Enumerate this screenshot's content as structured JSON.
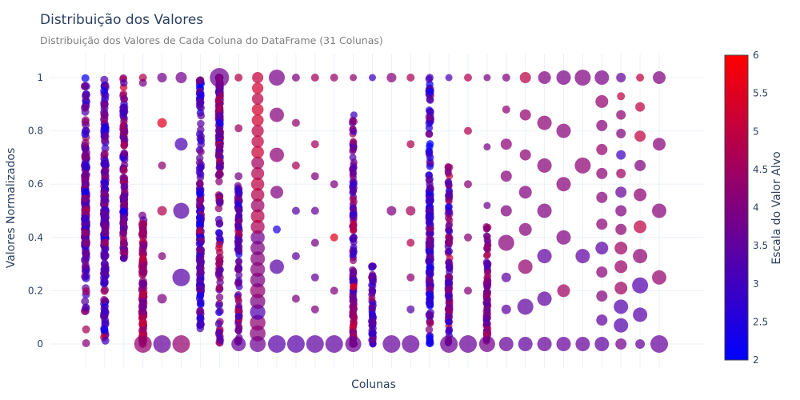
{
  "chart_data": {
    "type": "scatter",
    "title": "Distribuição dos Valores",
    "subtitle": "Distribuição dos Valores de Cada Coluna do DataFrame (31 Colunas)",
    "xlabel": "Colunas",
    "ylabel": "Valores Normalizados",
    "ylim": [
      -0.09,
      1.09
    ],
    "yticks": [
      "0",
      "0.2",
      "0.4",
      "0.6",
      "0.8",
      "1"
    ],
    "ytick_values": [
      0,
      0.2,
      0.4,
      0.6,
      0.8,
      1
    ],
    "column_count": 31,
    "grid": true,
    "colorbar": {
      "title": "Escala do Valor Alvo",
      "min": 2,
      "max": 6,
      "ticks": [
        "2",
        "2.5",
        "3",
        "3.5",
        "4",
        "4.5",
        "5",
        "5.5",
        "6"
      ],
      "tick_values": [
        2,
        2.5,
        3,
        3.5,
        4,
        4.5,
        5,
        5.5,
        6
      ],
      "colors": [
        "#0000ff",
        "#ff0000"
      ]
    },
    "columns": [
      {
        "kind": "dense",
        "lo": 0.0,
        "hi": 1.0,
        "mid": 3.6,
        "spread": 0.7,
        "center": 0.5,
        "peak": 0.65,
        "size": 8,
        "sparse": [
          0.93,
          0.89,
          0.84,
          0.8
        ]
      },
      {
        "kind": "dense",
        "lo": 0.0,
        "hi": 1.0,
        "mid": 3.3,
        "spread": 0.7,
        "center": 0.45,
        "peak": 0.45,
        "size": 8,
        "sparse": [
          0.9,
          0.86
        ]
      },
      {
        "kind": "dense",
        "lo": 0.32,
        "hi": 1.0,
        "mid": 3.7,
        "spread": 0.8,
        "center": 0.6,
        "peak": 0.35,
        "size": 7.5,
        "sparse": [
          0.98,
          0.92,
          0.87
        ]
      },
      {
        "kind": "dense",
        "lo": 0.0,
        "hi": 0.5,
        "mid": 4.4,
        "spread": 0.5,
        "center": 0.1,
        "peak": 0.3,
        "size": 8,
        "zero_size": 11,
        "sparse": [
          1.0,
          0.98
        ]
      },
      {
        "kind": "sparse",
        "points": [
          [
            1.0,
            3.8,
            6
          ],
          [
            0.83,
            5.5,
            6
          ],
          [
            0.67,
            4.2,
            5
          ],
          [
            0.5,
            4.8,
            6
          ],
          [
            0.33,
            4.1,
            5
          ],
          [
            0.17,
            4.0,
            6
          ],
          [
            0.0,
            3.6,
            11
          ]
        ]
      },
      {
        "kind": "sparse",
        "points": [
          [
            1.0,
            3.8,
            7
          ],
          [
            0.75,
            3.2,
            8
          ],
          [
            0.5,
            3.4,
            10
          ],
          [
            0.25,
            3.4,
            11
          ],
          [
            0.0,
            4.3,
            11
          ]
        ]
      },
      {
        "kind": "dense",
        "lo": 0.0,
        "hi": 1.0,
        "mid": 3.3,
        "spread": 0.7,
        "center": 0.4,
        "peak": 0.5,
        "size": 7.5,
        "sparse": [
          0.99
        ]
      },
      {
        "kind": "dense",
        "lo": 0.0,
        "hi": 1.0,
        "mid": 3.8,
        "spread": 0.8,
        "center": 0.85,
        "peak": 0.5,
        "size": 7.5,
        "sparse": [
          1.0
        ],
        "top_size": 12
      },
      {
        "kind": "sparse",
        "points": [
          [
            1.0,
            4.8,
            5
          ],
          [
            0.81,
            4.5,
            5
          ],
          [
            0.63,
            3.9,
            5
          ]
        ],
        "dense_lo": 0.0,
        "dense_hi": 0.6,
        "mid": 3.7,
        "zero_size": 9
      },
      {
        "kind": "ladder",
        "from": 0.0,
        "to": 1.0,
        "step": 0.04,
        "mid": 4.5,
        "size_lo": 7,
        "size_hi": 10
      },
      {
        "kind": "sparse",
        "points": [
          [
            1.0,
            3.9,
            10
          ],
          [
            0.86,
            4.1,
            9
          ],
          [
            0.71,
            4.2,
            9
          ],
          [
            0.57,
            4.0,
            8
          ],
          [
            0.43,
            2.5,
            5
          ],
          [
            0.29,
            3.4,
            9
          ],
          [
            0.0,
            3.4,
            11
          ]
        ]
      },
      {
        "kind": "sparse",
        "points": [
          [
            1.0,
            4.0,
            5
          ],
          [
            0.83,
            4.3,
            5
          ],
          [
            0.67,
            4.7,
            5
          ],
          [
            0.5,
            3.4,
            5
          ],
          [
            0.33,
            3.5,
            5
          ],
          [
            0.17,
            4.0,
            5
          ],
          [
            0.0,
            3.4,
            11
          ]
        ]
      },
      {
        "kind": "sparse",
        "points": [
          [
            1.0,
            4.6,
            5
          ],
          [
            0.75,
            4.6,
            5
          ],
          [
            0.63,
            4.0,
            5
          ],
          [
            0.5,
            3.6,
            5
          ],
          [
            0.38,
            3.9,
            5
          ],
          [
            0.25,
            3.6,
            5
          ],
          [
            0.13,
            4.0,
            5
          ],
          [
            0.0,
            3.5,
            11
          ]
        ]
      },
      {
        "kind": "sparse",
        "points": [
          [
            1.0,
            4.4,
            5
          ],
          [
            0.6,
            4.0,
            5
          ],
          [
            0.4,
            5.6,
            5
          ],
          [
            0.2,
            4.0,
            5
          ],
          [
            0.0,
            3.5,
            11
          ]
        ]
      },
      {
        "kind": "dense",
        "lo": 0.0,
        "hi": 0.86,
        "mid": 3.8,
        "spread": 0.8,
        "center": 0.1,
        "peak": 0.25,
        "size": 7,
        "zero_size": 10,
        "sparse": [
          1.0,
          0.76,
          0.73,
          0.64,
          0.6
        ]
      },
      {
        "kind": "dense",
        "lo": 0.0,
        "hi": 0.3,
        "mid": 3.4,
        "spread": 0.7,
        "center": 0.05,
        "peak": 0.15,
        "size": 7,
        "sparse": [
          1.0
        ]
      },
      {
        "kind": "sparse",
        "points": [
          [
            1.0,
            4.1,
            6
          ],
          [
            0.5,
            4.0,
            6
          ],
          [
            0.0,
            3.6,
            11
          ]
        ]
      },
      {
        "kind": "sparse",
        "points": [
          [
            1.0,
            4.7,
            5
          ],
          [
            0.75,
            4.8,
            5
          ],
          [
            0.5,
            4.6,
            6
          ],
          [
            0.38,
            4.8,
            5
          ],
          [
            0.25,
            4.2,
            5
          ],
          [
            0.13,
            3.4,
            5
          ],
          [
            0.0,
            3.6,
            11
          ]
        ]
      },
      {
        "kind": "dense",
        "lo": 0.0,
        "hi": 1.0,
        "mid": 3.0,
        "spread": 0.8,
        "center": 0.4,
        "peak": 0.55,
        "size": 7.5,
        "sparse": [
          1.0
        ]
      },
      {
        "kind": "dense",
        "lo": 0.0,
        "hi": 0.67,
        "mid": 3.8,
        "spread": 0.7,
        "center": 0.2,
        "peak": 0.35,
        "size": 7,
        "zero_size": 11,
        "sparse": [
          1.0
        ]
      },
      {
        "kind": "sparse",
        "points": [
          [
            1.0,
            4.8,
            5
          ],
          [
            0.8,
            4.8,
            5
          ],
          [
            0.6,
            4.2,
            5
          ],
          [
            0.4,
            4.1,
            5
          ],
          [
            0.2,
            4.1,
            5
          ],
          [
            0.0,
            3.6,
            11
          ]
        ]
      },
      {
        "kind": "dense",
        "lo": 0.0,
        "hi": 0.45,
        "mid": 3.9,
        "spread": 0.6,
        "center": 0.15,
        "peak": 0.25,
        "size": 7,
        "zero_size": 10,
        "sparse": [
          1.0,
          0.74,
          0.52
        ]
      },
      {
        "kind": "sparse",
        "points": [
          [
            1.0,
            4.0,
            5
          ],
          [
            0.88,
            4.2,
            5
          ],
          [
            0.75,
            4.2,
            7
          ],
          [
            0.63,
            4.1,
            7
          ],
          [
            0.5,
            4.0,
            7
          ],
          [
            0.38,
            4.1,
            10
          ],
          [
            0.25,
            3.5,
            6
          ],
          [
            0.13,
            3.5,
            6
          ],
          [
            0.0,
            3.6,
            9
          ]
        ]
      },
      {
        "kind": "sparse",
        "points": [
          [
            1.0,
            4.9,
            7
          ],
          [
            0.86,
            4.3,
            7
          ],
          [
            0.71,
            4.2,
            7
          ],
          [
            0.57,
            4.0,
            8
          ],
          [
            0.43,
            4.1,
            8
          ],
          [
            0.29,
            4.3,
            9
          ],
          [
            0.14,
            3.5,
            10
          ],
          [
            0.0,
            3.5,
            9
          ]
        ]
      },
      {
        "kind": "sparse",
        "points": [
          [
            1.0,
            4.0,
            8
          ],
          [
            0.83,
            4.2,
            9
          ],
          [
            0.67,
            4.1,
            9
          ],
          [
            0.5,
            4.0,
            9
          ],
          [
            0.33,
            3.5,
            9
          ],
          [
            0.17,
            3.5,
            9
          ],
          [
            0.0,
            3.6,
            9
          ]
        ]
      },
      {
        "kind": "sparse",
        "points": [
          [
            1.0,
            3.9,
            9
          ],
          [
            0.8,
            4.1,
            9
          ],
          [
            0.6,
            4.1,
            9
          ],
          [
            0.4,
            4.0,
            9
          ],
          [
            0.2,
            4.5,
            8
          ],
          [
            0.0,
            3.6,
            9
          ]
        ]
      },
      {
        "kind": "sparse",
        "points": [
          [
            1.0,
            4.0,
            10
          ],
          [
            0.67,
            4.2,
            10
          ],
          [
            0.33,
            3.5,
            9
          ],
          [
            0.0,
            3.6,
            9
          ]
        ]
      },
      {
        "kind": "sparse",
        "points": [
          [
            1.0,
            3.9,
            9
          ],
          [
            0.91,
            4.3,
            8
          ],
          [
            0.82,
            4.1,
            7
          ],
          [
            0.73,
            4.3,
            7
          ],
          [
            0.64,
            4.2,
            7
          ],
          [
            0.55,
            4.1,
            7
          ],
          [
            0.45,
            4.2,
            7
          ],
          [
            0.36,
            3.4,
            8
          ],
          [
            0.27,
            4.1,
            7
          ],
          [
            0.18,
            4.0,
            7
          ],
          [
            0.09,
            3.5,
            7
          ],
          [
            0.0,
            3.5,
            9
          ]
        ]
      },
      {
        "kind": "sparse",
        "points": [
          [
            1.0,
            3.6,
            6
          ],
          [
            0.93,
            5.0,
            5
          ],
          [
            0.86,
            4.2,
            6
          ],
          [
            0.79,
            4.0,
            6
          ],
          [
            0.71,
            3.0,
            6
          ],
          [
            0.64,
            4.5,
            6
          ],
          [
            0.57,
            3.6,
            7
          ],
          [
            0.5,
            4.0,
            7
          ],
          [
            0.43,
            4.2,
            7
          ],
          [
            0.36,
            4.5,
            8
          ],
          [
            0.29,
            4.4,
            8
          ],
          [
            0.21,
            4.5,
            8
          ],
          [
            0.14,
            3.3,
            9
          ],
          [
            0.07,
            3.3,
            9
          ],
          [
            0.0,
            3.8,
            7
          ]
        ]
      },
      {
        "kind": "sparse",
        "points": [
          [
            1.0,
            5.0,
            5
          ],
          [
            0.89,
            5.0,
            6
          ],
          [
            0.78,
            5.0,
            7
          ],
          [
            0.67,
            4.0,
            7
          ],
          [
            0.56,
            4.2,
            8
          ],
          [
            0.44,
            5.0,
            8
          ],
          [
            0.33,
            4.2,
            9
          ],
          [
            0.22,
            3.3,
            10
          ],
          [
            0.11,
            3.4,
            9
          ],
          [
            0.0,
            3.6,
            6
          ]
        ]
      },
      {
        "kind": "sparse",
        "points": [
          [
            1.0,
            4.0,
            8
          ],
          [
            0.75,
            4.1,
            8
          ],
          [
            0.5,
            4.1,
            9
          ],
          [
            0.25,
            4.3,
            9
          ],
          [
            0.0,
            3.6,
            11
          ]
        ]
      }
    ]
  }
}
